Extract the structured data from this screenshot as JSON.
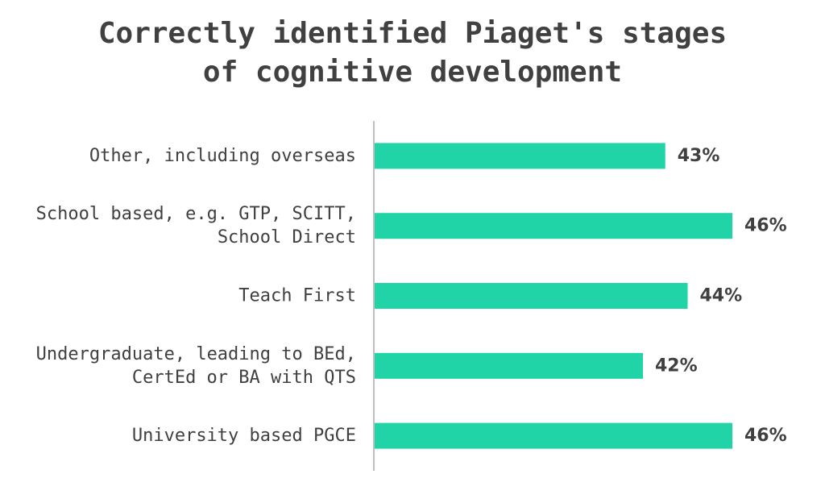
{
  "chart_data": {
    "type": "bar",
    "orientation": "horizontal",
    "title": [
      "Correctly identified Piaget's stages",
      "of cognitive development"
    ],
    "categories": [
      [
        "Other, including overseas"
      ],
      [
        "School based, e.g. GTP, SCITT,",
        "School Direct"
      ],
      [
        "Teach First"
      ],
      [
        "Undergraduate, leading to BEd,",
        "CertEd or BA with QTS"
      ],
      [
        "University based PGCE"
      ]
    ],
    "values": [
      43,
      46,
      44,
      42,
      46
    ],
    "value_labels": [
      "43%",
      "46%",
      "44%",
      "42%",
      "46%"
    ],
    "xlim": [
      30,
      46
    ],
    "grid": false,
    "legend": "none",
    "bar_color": "#21D4A7",
    "axis_color": "#BFBFBF",
    "text_color": "#404040"
  }
}
